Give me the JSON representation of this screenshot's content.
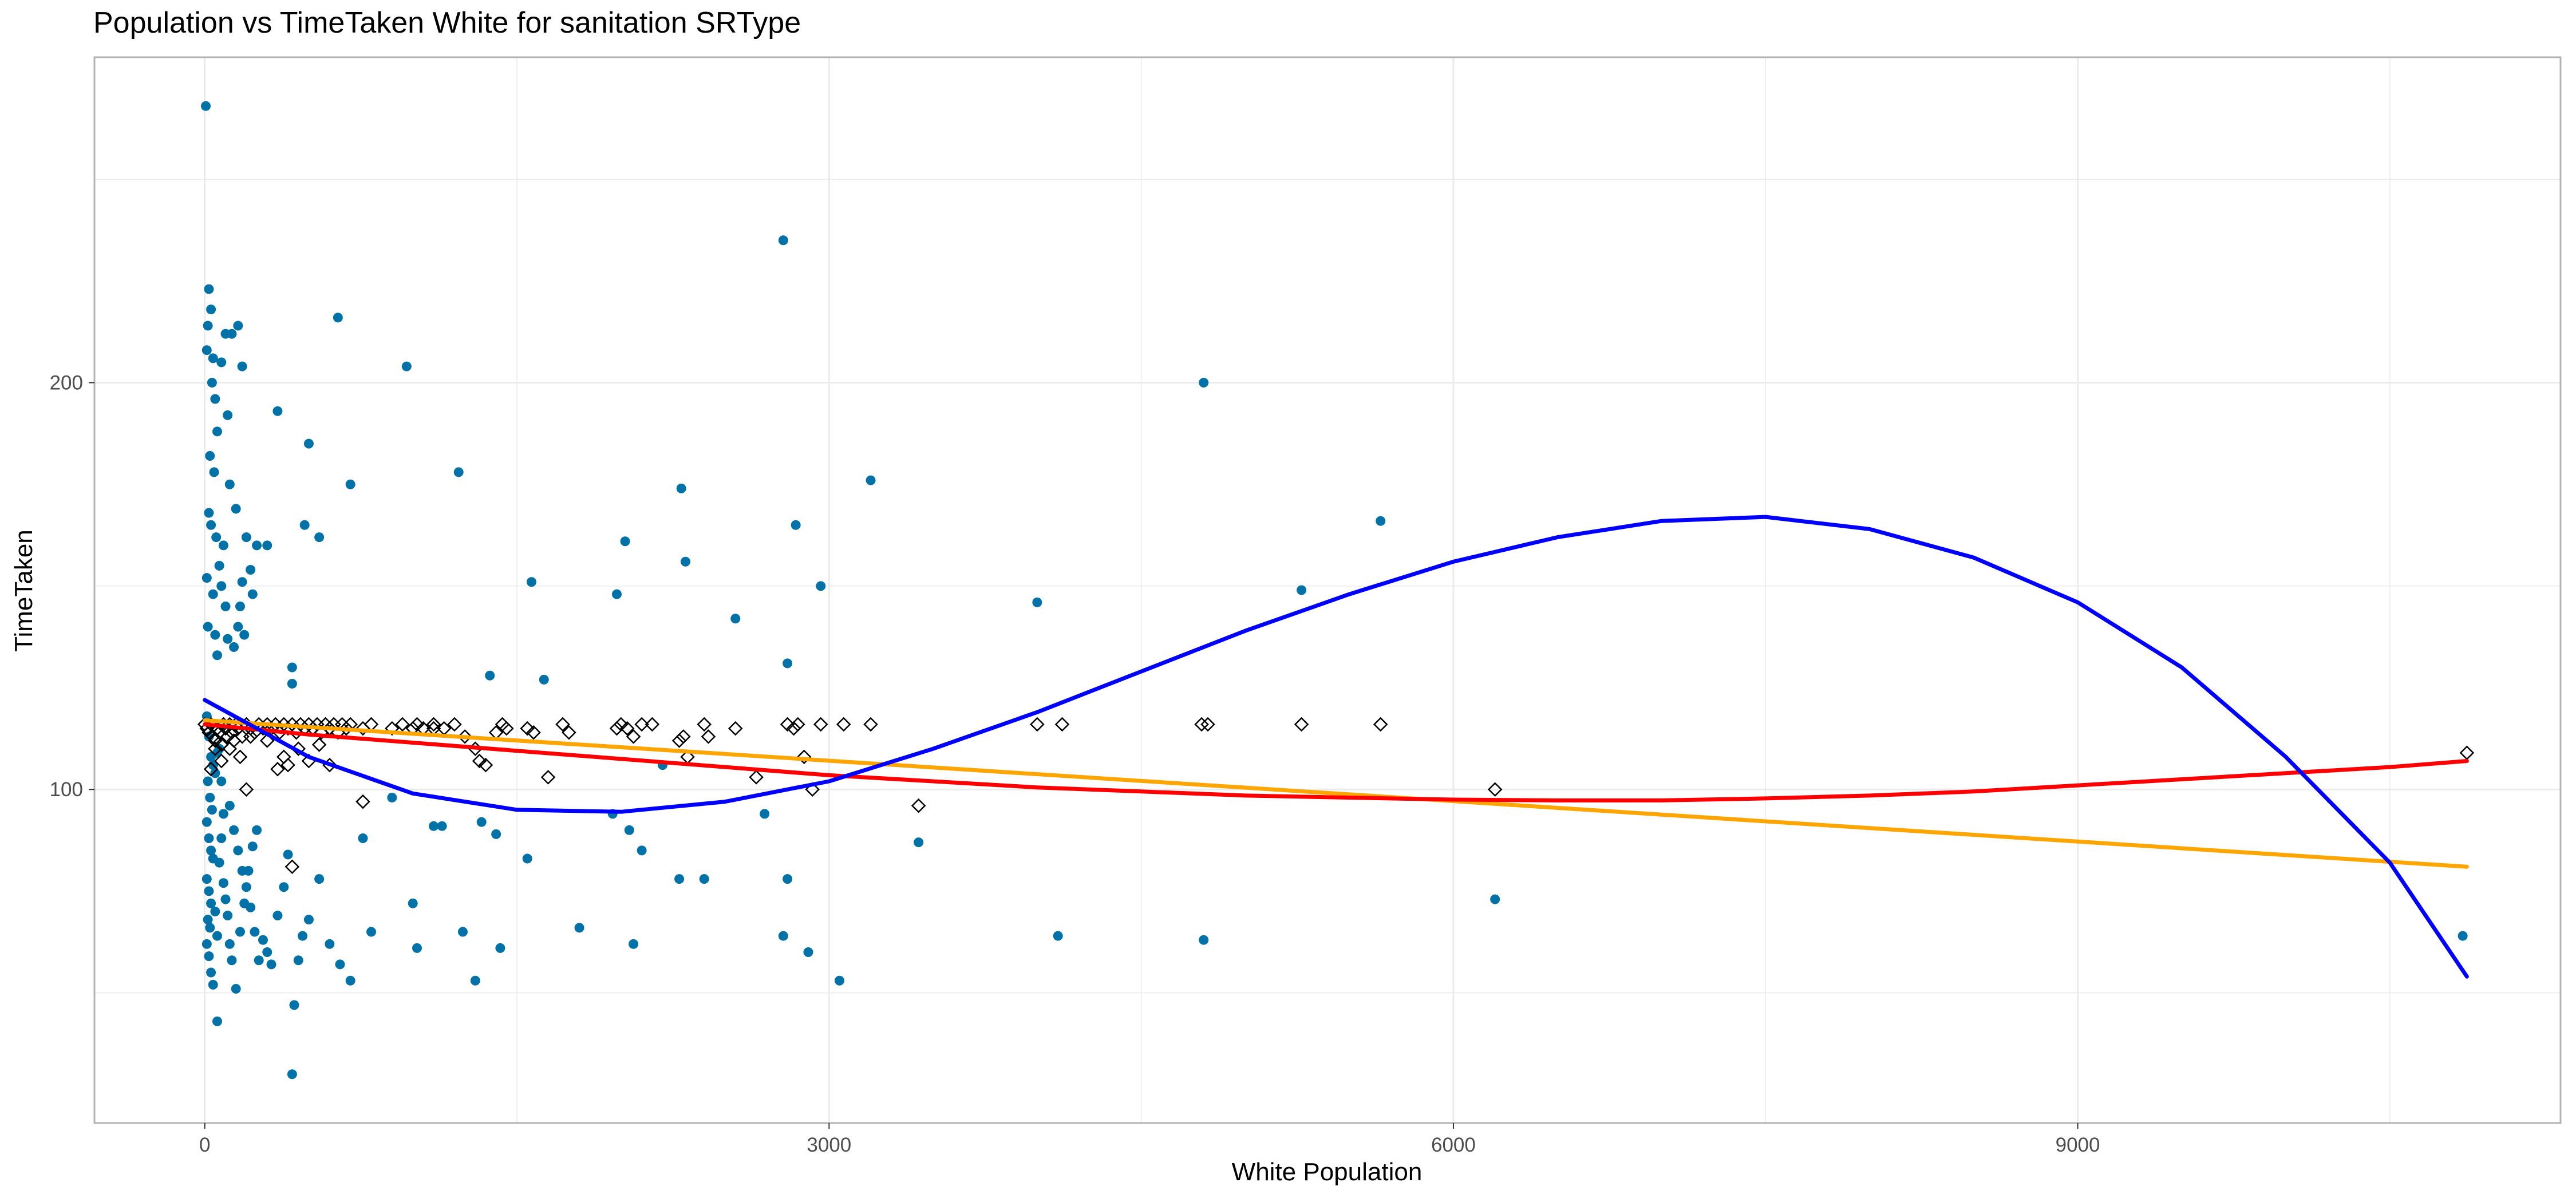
{
  "chart_data": {
    "type": "scatter",
    "title": "Population vs TimeTaken White for sanitation SRType",
    "xlabel": "White Population",
    "ylabel": "TimeTaken",
    "xlim": [
      -530,
      11320
    ],
    "ylim": [
      18,
      280
    ],
    "x_ticks": [
      0,
      3000,
      6000,
      9000
    ],
    "y_ticks": [
      100,
      200
    ],
    "grid": true,
    "colors": {
      "points": "#0072a8",
      "diamond_stroke": "#000000",
      "blue_fit": "#0000ff",
      "red_fit": "#ff0000",
      "orange_fit": "#ffa500",
      "grid": "#ebebeb",
      "panel_border": "#b3b3b3"
    },
    "series": [
      {
        "marker": "dot",
        "points": [
          [
            5,
            268
          ],
          [
            20,
            223
          ],
          [
            15,
            214
          ],
          [
            30,
            218
          ],
          [
            10,
            208
          ],
          [
            40,
            206
          ],
          [
            35,
            200
          ],
          [
            50,
            196
          ],
          [
            60,
            188
          ],
          [
            25,
            182
          ],
          [
            45,
            178
          ],
          [
            20,
            168
          ],
          [
            30,
            165
          ],
          [
            55,
            162
          ],
          [
            10,
            152
          ],
          [
            40,
            148
          ],
          [
            15,
            140
          ],
          [
            50,
            138
          ],
          [
            70,
            155
          ],
          [
            80,
            150
          ],
          [
            90,
            160
          ],
          [
            60,
            133
          ],
          [
            100,
            145
          ],
          [
            110,
            137
          ],
          [
            130,
            212
          ],
          [
            160,
            214
          ],
          [
            100,
            212
          ],
          [
            80,
            205
          ],
          [
            180,
            204
          ],
          [
            110,
            192
          ],
          [
            120,
            175
          ],
          [
            150,
            169
          ],
          [
            200,
            162
          ],
          [
            220,
            154
          ],
          [
            250,
            160
          ],
          [
            180,
            151
          ],
          [
            170,
            145
          ],
          [
            160,
            140
          ],
          [
            140,
            135
          ],
          [
            190,
            138
          ],
          [
            230,
            148
          ],
          [
            300,
            160
          ],
          [
            350,
            193
          ],
          [
            420,
            130
          ],
          [
            480,
            165
          ],
          [
            420,
            126
          ],
          [
            500,
            185
          ],
          [
            550,
            162
          ],
          [
            640,
            216
          ],
          [
            700,
            175
          ],
          [
            970,
            204
          ],
          [
            1220,
            178
          ],
          [
            1370,
            128
          ],
          [
            1630,
            127
          ],
          [
            1570,
            151
          ],
          [
            1980,
            148
          ],
          [
            2020,
            161
          ],
          [
            2290,
            174
          ],
          [
            2310,
            156
          ],
          [
            2550,
            142
          ],
          [
            2800,
            131
          ],
          [
            2780,
            235
          ],
          [
            2840,
            165
          ],
          [
            2960,
            150
          ],
          [
            3200,
            176
          ],
          [
            4000,
            146
          ],
          [
            4800,
            200
          ],
          [
            5270,
            149
          ],
          [
            5650,
            166
          ],
          [
            10,
            118
          ],
          [
            20,
            113
          ],
          [
            30,
            108
          ],
          [
            40,
            106
          ],
          [
            15,
            102
          ],
          [
            25,
            98
          ],
          [
            35,
            95
          ],
          [
            50,
            104
          ],
          [
            60,
            109
          ],
          [
            10,
            92
          ],
          [
            20,
            88
          ],
          [
            30,
            85
          ],
          [
            40,
            83
          ],
          [
            10,
            78
          ],
          [
            20,
            75
          ],
          [
            30,
            72
          ],
          [
            15,
            68
          ],
          [
            25,
            66
          ],
          [
            10,
            62
          ],
          [
            20,
            59
          ],
          [
            30,
            55
          ],
          [
            40,
            52
          ],
          [
            50,
            70
          ],
          [
            60,
            64
          ],
          [
            70,
            82
          ],
          [
            80,
            88
          ],
          [
            90,
            77
          ],
          [
            100,
            73
          ],
          [
            110,
            69
          ],
          [
            120,
            62
          ],
          [
            130,
            58
          ],
          [
            150,
            51
          ],
          [
            170,
            65
          ],
          [
            190,
            72
          ],
          [
            210,
            80
          ],
          [
            230,
            86
          ],
          [
            250,
            90
          ],
          [
            280,
            63
          ],
          [
            300,
            60
          ],
          [
            320,
            57
          ],
          [
            350,
            69
          ],
          [
            380,
            76
          ],
          [
            400,
            84
          ],
          [
            420,
            30
          ],
          [
            430,
            47
          ],
          [
            450,
            58
          ],
          [
            470,
            64
          ],
          [
            500,
            68
          ],
          [
            550,
            78
          ],
          [
            600,
            62
          ],
          [
            650,
            57
          ],
          [
            700,
            53
          ],
          [
            760,
            88
          ],
          [
            800,
            65
          ],
          [
            900,
            98
          ],
          [
            1000,
            72
          ],
          [
            1020,
            61
          ],
          [
            1100,
            91
          ],
          [
            1140,
            91
          ],
          [
            1240,
            65
          ],
          [
            1300,
            53
          ],
          [
            1330,
            92
          ],
          [
            1400,
            89
          ],
          [
            1420,
            61
          ],
          [
            1550,
            83
          ],
          [
            1800,
            66
          ],
          [
            1960,
            94
          ],
          [
            2040,
            90
          ],
          [
            2060,
            62
          ],
          [
            2100,
            85
          ],
          [
            2200,
            106
          ],
          [
            2280,
            78
          ],
          [
            2400,
            78
          ],
          [
            2690,
            94
          ],
          [
            2780,
            64
          ],
          [
            2800,
            78
          ],
          [
            2900,
            60
          ],
          [
            3050,
            53
          ],
          [
            3430,
            87
          ],
          [
            4100,
            64
          ],
          [
            4800,
            63
          ],
          [
            6200,
            73
          ],
          [
            10850,
            64
          ],
          [
            60,
            43
          ],
          [
            70,
            110
          ],
          [
            80,
            102
          ],
          [
            90,
            94
          ],
          [
            120,
            96
          ],
          [
            140,
            90
          ],
          [
            160,
            85
          ],
          [
            180,
            80
          ],
          [
            200,
            76
          ],
          [
            220,
            71
          ],
          [
            240,
            65
          ],
          [
            260,
            58
          ]
        ]
      },
      {
        "marker": "diamond",
        "points": [
          [
            0,
            116
          ],
          [
            10,
            115
          ],
          [
            20,
            114
          ],
          [
            30,
            116
          ],
          [
            40,
            113
          ],
          [
            50,
            112
          ],
          [
            60,
            115
          ],
          [
            70,
            114
          ],
          [
            80,
            111
          ],
          [
            90,
            116
          ],
          [
            100,
            115
          ],
          [
            110,
            113
          ],
          [
            120,
            116
          ],
          [
            130,
            114
          ],
          [
            140,
            112
          ],
          [
            150,
            116
          ],
          [
            160,
            115
          ],
          [
            180,
            113
          ],
          [
            200,
            116
          ],
          [
            220,
            115
          ],
          [
            240,
            114
          ],
          [
            260,
            116
          ],
          [
            280,
            115
          ],
          [
            300,
            116
          ],
          [
            320,
            115
          ],
          [
            340,
            116
          ],
          [
            360,
            114
          ],
          [
            380,
            116
          ],
          [
            400,
            115
          ],
          [
            420,
            116
          ],
          [
            440,
            114
          ],
          [
            460,
            116
          ],
          [
            480,
            115
          ],
          [
            500,
            116
          ],
          [
            520,
            115
          ],
          [
            540,
            116
          ],
          [
            560,
            114
          ],
          [
            580,
            116
          ],
          [
            600,
            115
          ],
          [
            620,
            116
          ],
          [
            640,
            114
          ],
          [
            660,
            116
          ],
          [
            680,
            115
          ],
          [
            700,
            116
          ],
          [
            760,
            115
          ],
          [
            800,
            116
          ],
          [
            900,
            115
          ],
          [
            950,
            116
          ],
          [
            1000,
            115
          ],
          [
            1020,
            116
          ],
          [
            1050,
            115
          ],
          [
            1100,
            116
          ],
          [
            1150,
            115
          ],
          [
            1200,
            116
          ],
          [
            1250,
            113
          ],
          [
            1300,
            110
          ],
          [
            1320,
            107
          ],
          [
            1350,
            106
          ],
          [
            1400,
            114
          ],
          [
            1430,
            116
          ],
          [
            1450,
            115
          ],
          [
            1550,
            115
          ],
          [
            1580,
            114
          ],
          [
            1650,
            103
          ],
          [
            1720,
            116
          ],
          [
            1750,
            114
          ],
          [
            1980,
            115
          ],
          [
            2000,
            116
          ],
          [
            2030,
            115
          ],
          [
            2060,
            113
          ],
          [
            2100,
            116
          ],
          [
            2150,
            116
          ],
          [
            2280,
            112
          ],
          [
            2300,
            113
          ],
          [
            2320,
            108
          ],
          [
            2400,
            116
          ],
          [
            2420,
            113
          ],
          [
            2550,
            115
          ],
          [
            2650,
            103
          ],
          [
            2800,
            116
          ],
          [
            2830,
            115
          ],
          [
            2850,
            116
          ],
          [
            2880,
            108
          ],
          [
            2920,
            100
          ],
          [
            2960,
            116
          ],
          [
            3070,
            116
          ],
          [
            3200,
            116
          ],
          [
            3430,
            96
          ],
          [
            4000,
            116
          ],
          [
            4120,
            116
          ],
          [
            4790,
            116
          ],
          [
            4820,
            116
          ],
          [
            5270,
            116
          ],
          [
            5650,
            116
          ],
          [
            6200,
            100
          ],
          [
            10870,
            109
          ],
          [
            30,
            105
          ],
          [
            50,
            110
          ],
          [
            80,
            107
          ],
          [
            120,
            110
          ],
          [
            170,
            108
          ],
          [
            200,
            100
          ],
          [
            220,
            113
          ],
          [
            300,
            112
          ],
          [
            350,
            105
          ],
          [
            380,
            108
          ],
          [
            400,
            106
          ],
          [
            420,
            81
          ],
          [
            450,
            110
          ],
          [
            500,
            107
          ],
          [
            550,
            111
          ],
          [
            600,
            106
          ],
          [
            760,
            97
          ],
          [
            1100,
            115
          ]
        ]
      }
    ],
    "fits": [
      {
        "color": "blue",
        "points": [
          [
            0,
            122
          ],
          [
            500,
            108
          ],
          [
            1000,
            99
          ],
          [
            1500,
            95
          ],
          [
            2000,
            94.5
          ],
          [
            2500,
            97
          ],
          [
            3000,
            102
          ],
          [
            3500,
            110
          ],
          [
            4000,
            119
          ],
          [
            4500,
            129
          ],
          [
            5000,
            139
          ],
          [
            5500,
            148
          ],
          [
            6000,
            156
          ],
          [
            6500,
            162
          ],
          [
            7000,
            166
          ],
          [
            7500,
            167
          ],
          [
            8000,
            164
          ],
          [
            8500,
            157
          ],
          [
            9000,
            146
          ],
          [
            9500,
            130
          ],
          [
            10000,
            108
          ],
          [
            10500,
            82
          ],
          [
            10870,
            54
          ]
        ]
      },
      {
        "color": "red",
        "points": [
          [
            0,
            116
          ],
          [
            500,
            113.5
          ],
          [
            1000,
            111.5
          ],
          [
            1500,
            109.5
          ],
          [
            2000,
            107.5
          ],
          [
            2500,
            105.5
          ],
          [
            3000,
            103.5
          ],
          [
            3500,
            102
          ],
          [
            4000,
            100.5
          ],
          [
            4500,
            99.5
          ],
          [
            5000,
            98.5
          ],
          [
            5500,
            98
          ],
          [
            6000,
            97.5
          ],
          [
            6500,
            97.3
          ],
          [
            7000,
            97.3
          ],
          [
            7500,
            97.8
          ],
          [
            8000,
            98.5
          ],
          [
            8500,
            99.5
          ],
          [
            9000,
            101
          ],
          [
            9500,
            102.5
          ],
          [
            10000,
            104
          ],
          [
            10500,
            105.5
          ],
          [
            10870,
            107
          ]
        ]
      },
      {
        "color": "orange",
        "points": [
          [
            0,
            117
          ],
          [
            10870,
            81
          ]
        ]
      }
    ]
  }
}
